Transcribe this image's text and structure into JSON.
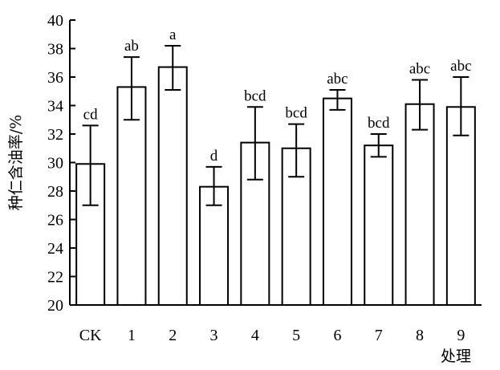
{
  "chart_data": {
    "type": "bar",
    "xlabel": "处理",
    "ylabel": "种仁含油率/%",
    "ylim": [
      20,
      40
    ],
    "yticks": [
      20,
      22,
      24,
      26,
      28,
      30,
      32,
      34,
      36,
      38,
      40
    ],
    "categories": [
      "CK",
      "1",
      "2",
      "3",
      "4",
      "5",
      "6",
      "7",
      "8",
      "9"
    ],
    "values": [
      29.9,
      35.3,
      36.7,
      28.3,
      31.4,
      31.0,
      34.5,
      31.2,
      34.1,
      33.9
    ],
    "error_low": [
      27.0,
      33.0,
      35.1,
      27.0,
      28.8,
      29.0,
      33.7,
      30.4,
      32.3,
      31.9
    ],
    "error_high": [
      32.6,
      37.4,
      38.2,
      29.7,
      33.9,
      32.7,
      35.1,
      32.0,
      35.8,
      36.0
    ],
    "significance": [
      "cd",
      "ab",
      "a",
      "d",
      "bcd",
      "bcd",
      "abc",
      "bcd",
      "abc",
      "abc"
    ],
    "grid": false,
    "legend": "none"
  }
}
